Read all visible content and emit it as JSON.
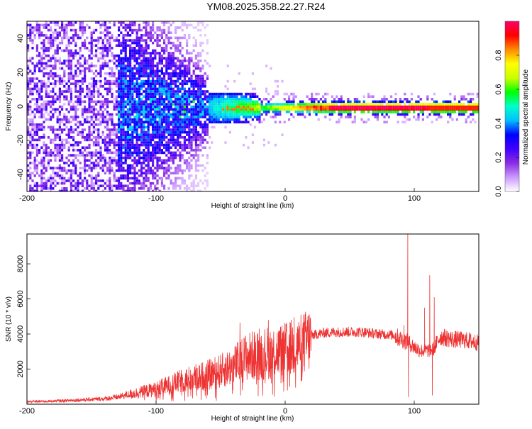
{
  "title": "YM08.2025.358.22.27.R24",
  "chart_data": [
    {
      "type": "heatmap",
      "xlabel": "Height of straight line (km)",
      "ylabel": "Frequency (Hz)",
      "xlim": [
        -200,
        150
      ],
      "ylim": [
        -50,
        50
      ],
      "x_ticks": [
        -200,
        -100,
        0,
        100
      ],
      "y_ticks": [
        -40,
        -20,
        0,
        20,
        40
      ],
      "description_values": {
        "ridge_frequency_hz": 0,
        "ridge_start_km": -60,
        "max_amplitude_region_km": [
          -50,
          150
        ]
      },
      "colorbar": {
        "label": "Normalized spectral amplitude",
        "range": [
          0,
          1
        ],
        "ticks": [
          "0.0",
          "0.2",
          "0.4",
          "0.6",
          "0.8"
        ],
        "colors": [
          "#ffffff",
          "#cc99ff",
          "#8a2be2",
          "#3f00ff",
          "#0000ff",
          "#00bfff",
          "#00ffcc",
          "#00ff00",
          "#ccff00",
          "#ffff00",
          "#ff8c00",
          "#ff0000",
          "#ff0066"
        ]
      }
    },
    {
      "type": "line",
      "xlabel": "Height of straight line (km)",
      "ylabel": "SNR (10 * v/v)",
      "xlim": [
        -200,
        150
      ],
      "ylim": [
        0,
        9700
      ],
      "x_ticks": [
        -200,
        -100,
        0,
        100
      ],
      "y_ticks": [
        2000,
        4000,
        6000,
        8000
      ],
      "color": "#ee3333",
      "series": [
        {
          "name": "SNR",
          "x": [
            -200,
            -180,
            -160,
            -140,
            -130,
            -120,
            -110,
            -100,
            -90,
            -80,
            -70,
            -60,
            -50,
            -40,
            -35,
            -30,
            -20,
            -10,
            0,
            5,
            10,
            15,
            20,
            30,
            40,
            50,
            60,
            70,
            80,
            85,
            90,
            95,
            100,
            105,
            110,
            115,
            120,
            130,
            140,
            150
          ],
          "values": [
            150,
            180,
            250,
            320,
            420,
            600,
            750,
            900,
            1150,
            1400,
            1600,
            1750,
            2000,
            2300,
            2600,
            2850,
            3000,
            3150,
            3250,
            3400,
            3500,
            3700,
            3950,
            4100,
            4150,
            4150,
            4150,
            4050,
            4000,
            3950,
            3750,
            3600,
            3300,
            3100,
            3100,
            3200,
            3900,
            3750,
            3700,
            3550
          ],
          "spikes": [
            {
              "x": -35,
              "value": 4650
            },
            {
              "x": -20,
              "value": 4300
            },
            {
              "x": -13,
              "value": 4800
            },
            {
              "x": 7,
              "value": 4950
            },
            {
              "x": 10,
              "value": 4300
            },
            {
              "x": 92,
              "value": 4500
            },
            {
              "x": 95,
              "value": 9700
            },
            {
              "x": 95.5,
              "value": 400
            },
            {
              "x": 108,
              "value": 5500
            },
            {
              "x": 112,
              "value": 7350
            },
            {
              "x": 114,
              "value": 500
            },
            {
              "x": 115.5,
              "value": 6100
            }
          ]
        }
      ]
    }
  ]
}
